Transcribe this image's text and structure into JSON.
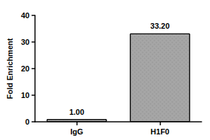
{
  "chart_data": {
    "type": "bar",
    "categories": [
      "IgG",
      "H1F0"
    ],
    "values": [
      1.0,
      33.2
    ],
    "value_labels": [
      "1.00",
      "33.20"
    ],
    "data_labels": true,
    "color": "#a6a6a6",
    "y_label": "Fold Enrichment",
    "ylim": [
      0,
      40
    ],
    "yticks": [
      0,
      10,
      20,
      30,
      40
    ],
    "grid": false
  }
}
